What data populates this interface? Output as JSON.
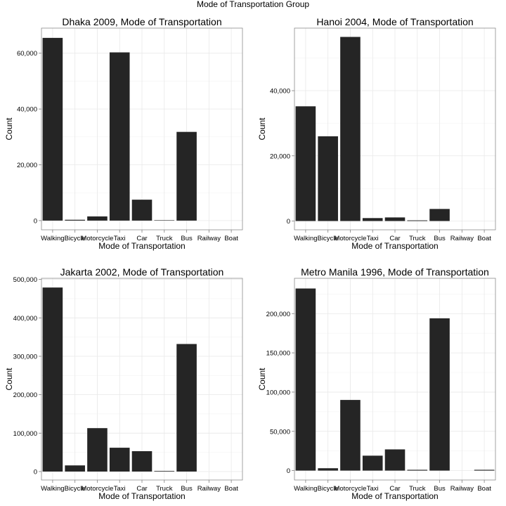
{
  "page_title": "Mode of Transportation Group",
  "chart_data": [
    {
      "type": "bar",
      "title": "Dhaka 2009, Mode of Transportation",
      "xlabel": "Mode of Transportation",
      "ylabel": "Count",
      "categories": [
        "Walking",
        "Bicycle",
        "Motorcycle",
        "Taxi",
        "Car",
        "Truck",
        "Bus",
        "Railway",
        "Boat"
      ],
      "values": [
        65500,
        300,
        1500,
        60300,
        7500,
        150,
        31800,
        0,
        0
      ],
      "ylim": [
        -3300,
        69000
      ],
      "yticks": [
        0,
        20000,
        40000,
        60000
      ],
      "ytick_labels": [
        "0",
        "20,000",
        "40,000",
        "60,000"
      ],
      "grid": true,
      "bar_color": "#252525"
    },
    {
      "type": "bar",
      "title": "Hanoi 2004, Mode of Transportation",
      "xlabel": "Mode of Transportation",
      "ylabel": "Count",
      "categories": [
        "Walking",
        "Bicycle",
        "Motorcycle",
        "Taxi",
        "Car",
        "Truck",
        "Bus",
        "Railway",
        "Boat"
      ],
      "values": [
        35200,
        26000,
        56500,
        900,
        1100,
        200,
        3700,
        0,
        0
      ],
      "ylim": [
        -2700,
        59200
      ],
      "yticks": [
        0,
        20000,
        40000
      ],
      "ytick_labels": [
        "0",
        "20,000",
        "40,000"
      ],
      "grid": true,
      "bar_color": "#252525"
    },
    {
      "type": "bar",
      "title": "Jakarta 2002, Mode of Transportation",
      "xlabel": "Mode of Transportation",
      "ylabel": "Count",
      "categories": [
        "Walking",
        "Bicycle",
        "Motorcycle",
        "Taxi",
        "Car",
        "Truck",
        "Bus",
        "Railway",
        "Boat"
      ],
      "values": [
        479000,
        16000,
        113000,
        62000,
        53000,
        1500,
        332000,
        0,
        0
      ],
      "ylim": [
        -22000,
        503000
      ],
      "yticks": [
        0,
        100000,
        200000,
        300000,
        400000,
        500000
      ],
      "ytick_labels": [
        "0",
        "100,000",
        "200,000",
        "300,000",
        "400,000",
        "500,000"
      ],
      "grid": true,
      "bar_color": "#252525"
    },
    {
      "type": "bar",
      "title": "Metro Manila 1996, Mode of Transportation",
      "xlabel": "Mode of Transportation",
      "ylabel": "Count",
      "categories": [
        "Walking",
        "Bicycle",
        "Motorcycle",
        "Taxi",
        "Car",
        "Truck",
        "Bus",
        "Railway",
        "Boat"
      ],
      "values": [
        232000,
        3000,
        90000,
        19000,
        27000,
        1000,
        194000,
        0,
        1000
      ],
      "ylim": [
        -12000,
        245000
      ],
      "yticks": [
        0,
        50000,
        100000,
        150000,
        200000
      ],
      "ytick_labels": [
        "0",
        "50,000",
        "100,000",
        "150,000",
        "200,000"
      ],
      "grid": true,
      "bar_color": "#252525"
    }
  ]
}
